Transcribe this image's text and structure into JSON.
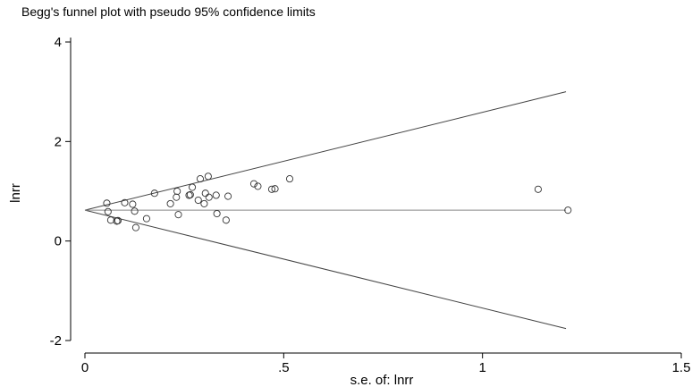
{
  "chart_data": {
    "type": "scatter",
    "title": "Begg's funnel plot with pseudo 95% confidence limits",
    "xlabel": "s.e. of: lnrr",
    "ylabel": "lnrr",
    "xlim": [
      0,
      1.5
    ],
    "ylim": [
      -2,
      4
    ],
    "x_ticks": [
      {
        "value": 0,
        "label": "0"
      },
      {
        "value": 0.5,
        "label": ".5"
      },
      {
        "value": 1,
        "label": "1"
      },
      {
        "value": 1.5,
        "label": "1.5"
      }
    ],
    "y_ticks": [
      {
        "value": -2,
        "label": "-2"
      },
      {
        "value": 0,
        "label": "0"
      },
      {
        "value": 2,
        "label": "2"
      },
      {
        "value": 4,
        "label": "4"
      }
    ],
    "grid": false,
    "pooled_estimate": 0.62,
    "confidence_lines": {
      "x_start": 0,
      "x_end": 1.21,
      "upper_end": 3.0,
      "lower_end": -1.76,
      "center": 0.62
    },
    "points": [
      {
        "x": 0.055,
        "y": 0.76
      },
      {
        "x": 0.058,
        "y": 0.59
      },
      {
        "x": 0.065,
        "y": 0.42
      },
      {
        "x": 0.08,
        "y": 0.4
      },
      {
        "x": 0.083,
        "y": 0.41
      },
      {
        "x": 0.1,
        "y": 0.77
      },
      {
        "x": 0.12,
        "y": 0.74
      },
      {
        "x": 0.125,
        "y": 0.6
      },
      {
        "x": 0.128,
        "y": 0.27
      },
      {
        "x": 0.155,
        "y": 0.45
      },
      {
        "x": 0.175,
        "y": 0.96
      },
      {
        "x": 0.215,
        "y": 0.75
      },
      {
        "x": 0.23,
        "y": 0.88
      },
      {
        "x": 0.232,
        "y": 1.0
      },
      {
        "x": 0.235,
        "y": 0.53
      },
      {
        "x": 0.262,
        "y": 0.92
      },
      {
        "x": 0.265,
        "y": 0.93
      },
      {
        "x": 0.27,
        "y": 1.08
      },
      {
        "x": 0.285,
        "y": 0.82
      },
      {
        "x": 0.29,
        "y": 1.25
      },
      {
        "x": 0.3,
        "y": 0.75
      },
      {
        "x": 0.303,
        "y": 0.96
      },
      {
        "x": 0.31,
        "y": 1.3
      },
      {
        "x": 0.312,
        "y": 0.88
      },
      {
        "x": 0.33,
        "y": 0.92
      },
      {
        "x": 0.332,
        "y": 0.55
      },
      {
        "x": 0.355,
        "y": 0.42
      },
      {
        "x": 0.36,
        "y": 0.9
      },
      {
        "x": 0.425,
        "y": 1.15
      },
      {
        "x": 0.435,
        "y": 1.1
      },
      {
        "x": 0.47,
        "y": 1.04
      },
      {
        "x": 0.478,
        "y": 1.05
      },
      {
        "x": 0.515,
        "y": 1.25
      },
      {
        "x": 1.14,
        "y": 1.04
      },
      {
        "x": 1.215,
        "y": 0.62
      }
    ]
  }
}
